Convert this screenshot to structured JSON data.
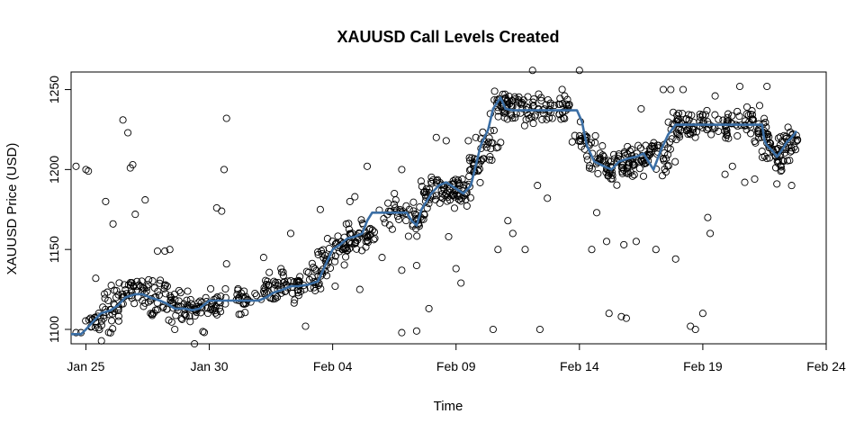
{
  "chart_data": {
    "type": "scatter",
    "title": "XAUUSD Call Levels Created",
    "xlabel": "Time",
    "ylabel": "XAUUSD Price (USD)",
    "x_ticks": [
      "Jan 25",
      "Jan 30",
      "Feb 04",
      "Feb 09",
      "Feb 14",
      "Feb 19",
      "Feb 24"
    ],
    "y_ticks": [
      "1100",
      "1150",
      "1200",
      "1250"
    ],
    "xlim_days": [
      24.4,
      55.0
    ],
    "ylim": [
      1091,
      1261
    ],
    "grid": false,
    "legend": "none",
    "colors": {
      "line": "#3a6ea5",
      "points": "#000000"
    },
    "series": [
      {
        "type": "line",
        "x_days": [
          24.4,
          24.8,
          25.0,
          25.3,
          25.6,
          26.0,
          26.3,
          26.6,
          27.0,
          27.3,
          27.6,
          28.0,
          28.3,
          28.6,
          29.0,
          29.3,
          29.6,
          30.0,
          30.5,
          31.0,
          31.5,
          32.0,
          32.3,
          32.6,
          33.0,
          33.3,
          33.6,
          34.0,
          34.4,
          34.7,
          35.0,
          35.3,
          35.6,
          35.9,
          36.2,
          36.4,
          36.6,
          37.0,
          37.5,
          38.0,
          38.2,
          38.4,
          38.6,
          39.0,
          39.3,
          39.6,
          40.0,
          40.3,
          40.6,
          41.0,
          41.3,
          41.5,
          41.8,
          42.0,
          42.3,
          42.6,
          43.0,
          43.5,
          44.0,
          44.5,
          44.9,
          45.1,
          45.3,
          45.6,
          46.0,
          46.3,
          46.6,
          47.0,
          47.3,
          47.6,
          48.0,
          48.3,
          48.6,
          48.9,
          49.0,
          49.2,
          49.5,
          50.0,
          50.5,
          51.0,
          51.5,
          52.0,
          52.4,
          52.5,
          52.6,
          52.8,
          53.0,
          53.2,
          53.4,
          53.6,
          53.8
        ],
        "y": [
          1097,
          1097,
          1100,
          1105,
          1110,
          1112,
          1115,
          1120,
          1122,
          1122,
          1120,
          1118,
          1116,
          1113,
          1113,
          1112,
          1113,
          1118,
          1118,
          1118,
          1118,
          1118,
          1120,
          1123,
          1125,
          1127,
          1127,
          1128,
          1130,
          1140,
          1150,
          1153,
          1157,
          1158,
          1160,
          1168,
          1173,
          1173,
          1173,
          1173,
          1168,
          1165,
          1175,
          1185,
          1190,
          1192,
          1188,
          1185,
          1190,
          1215,
          1225,
          1238,
          1245,
          1238,
          1237,
          1237,
          1237,
          1237,
          1237,
          1237,
          1237,
          1230,
          1215,
          1205,
          1202,
          1200,
          1205,
          1207,
          1208,
          1210,
          1200,
          1212,
          1222,
          1228,
          1228,
          1228,
          1228,
          1228,
          1228,
          1228,
          1228,
          1228,
          1228,
          1218,
          1215,
          1212,
          1208,
          1212,
          1217,
          1220,
          1224
        ]
      },
      {
        "type": "points",
        "seed": 7,
        "cluster_centers_days": [
          25.4,
          26.0,
          26.6,
          27.2,
          27.8,
          28.4,
          29.0,
          29.6,
          30.3,
          31.2,
          32.4,
          33.0,
          33.6,
          34.2,
          34.8,
          35.4,
          35.9,
          36.4,
          37.5,
          38.3,
          38.8,
          39.3,
          39.8,
          40.3,
          40.8,
          41.3,
          41.8,
          42.3,
          42.8,
          43.5,
          44.3,
          45.2,
          45.8,
          46.3,
          46.8,
          47.3,
          47.8,
          48.4,
          49.0,
          49.5,
          50.2,
          51.0,
          51.8,
          52.4,
          52.8,
          53.2,
          53.6
        ],
        "cluster_centers_y": [
          1104,
          1113,
          1120,
          1123,
          1120,
          1117,
          1113,
          1110,
          1118,
          1118,
          1124,
          1127,
          1128,
          1130,
          1145,
          1152,
          1158,
          1160,
          1173,
          1167,
          1185,
          1190,
          1188,
          1185,
          1200,
          1215,
          1240,
          1240,
          1237,
          1237,
          1237,
          1220,
          1205,
          1200,
          1205,
          1207,
          1208,
          1210,
          1228,
          1228,
          1228,
          1228,
          1228,
          1222,
          1215,
          1208,
          1218
        ],
        "outliers": [
          [
            24.6,
            1202
          ],
          [
            24.6,
            1098
          ],
          [
            24.8,
            1098
          ],
          [
            25.0,
            1200
          ],
          [
            25.1,
            1199
          ],
          [
            25.4,
            1132
          ],
          [
            25.8,
            1180
          ],
          [
            26.1,
            1166
          ],
          [
            26.5,
            1231
          ],
          [
            26.7,
            1223
          ],
          [
            26.8,
            1201
          ],
          [
            26.9,
            1203
          ],
          [
            27.0,
            1172
          ],
          [
            27.4,
            1181
          ],
          [
            27.9,
            1149
          ],
          [
            28.2,
            1149
          ],
          [
            28.4,
            1150
          ],
          [
            28.6,
            1100
          ],
          [
            29.4,
            1091
          ],
          [
            30.3,
            1176
          ],
          [
            30.5,
            1174
          ],
          [
            30.6,
            1200
          ],
          [
            30.7,
            1232
          ],
          [
            30.7,
            1141
          ],
          [
            31.2,
            1120
          ],
          [
            32.2,
            1145
          ],
          [
            33.3,
            1160
          ],
          [
            33.9,
            1102
          ],
          [
            34.5,
            1175
          ],
          [
            35.1,
            1127
          ],
          [
            35.7,
            1180
          ],
          [
            35.9,
            1183
          ],
          [
            36.1,
            1125
          ],
          [
            36.4,
            1202
          ],
          [
            37.0,
            1145
          ],
          [
            37.5,
            1185
          ],
          [
            37.8,
            1200
          ],
          [
            37.8,
            1137
          ],
          [
            37.8,
            1098
          ],
          [
            38.4,
            1099
          ],
          [
            38.4,
            1140
          ],
          [
            38.7,
            1172
          ],
          [
            38.9,
            1113
          ],
          [
            39.2,
            1220
          ],
          [
            39.6,
            1218
          ],
          [
            39.7,
            1158
          ],
          [
            40.0,
            1138
          ],
          [
            40.2,
            1129
          ],
          [
            40.5,
            1218
          ],
          [
            40.8,
            1220
          ],
          [
            41.5,
            1100
          ],
          [
            41.7,
            1150
          ],
          [
            42.1,
            1168
          ],
          [
            42.3,
            1160
          ],
          [
            42.8,
            1150
          ],
          [
            43.1,
            1262
          ],
          [
            43.3,
            1190
          ],
          [
            43.4,
            1100
          ],
          [
            43.7,
            1182
          ],
          [
            43.9,
            1232
          ],
          [
            44.4,
            1246
          ],
          [
            45.0,
            1262
          ],
          [
            45.5,
            1150
          ],
          [
            45.7,
            1173
          ],
          [
            46.1,
            1155
          ],
          [
            46.2,
            1110
          ],
          [
            46.7,
            1108
          ],
          [
            46.8,
            1153
          ],
          [
            46.9,
            1107
          ],
          [
            47.3,
            1155
          ],
          [
            47.5,
            1238
          ],
          [
            48.1,
            1150
          ],
          [
            48.4,
            1250
          ],
          [
            48.7,
            1250
          ],
          [
            48.9,
            1144
          ],
          [
            49.2,
            1250
          ],
          [
            49.5,
            1102
          ],
          [
            49.7,
            1100
          ],
          [
            50.0,
            1110
          ],
          [
            50.2,
            1170
          ],
          [
            50.3,
            1160
          ],
          [
            50.5,
            1246
          ],
          [
            50.9,
            1197
          ],
          [
            51.2,
            1202
          ],
          [
            51.5,
            1252
          ],
          [
            51.7,
            1192
          ],
          [
            52.1,
            1194
          ],
          [
            52.3,
            1240
          ],
          [
            52.6,
            1252
          ],
          [
            53.0,
            1191
          ],
          [
            53.6,
            1190
          ]
        ]
      }
    ]
  }
}
